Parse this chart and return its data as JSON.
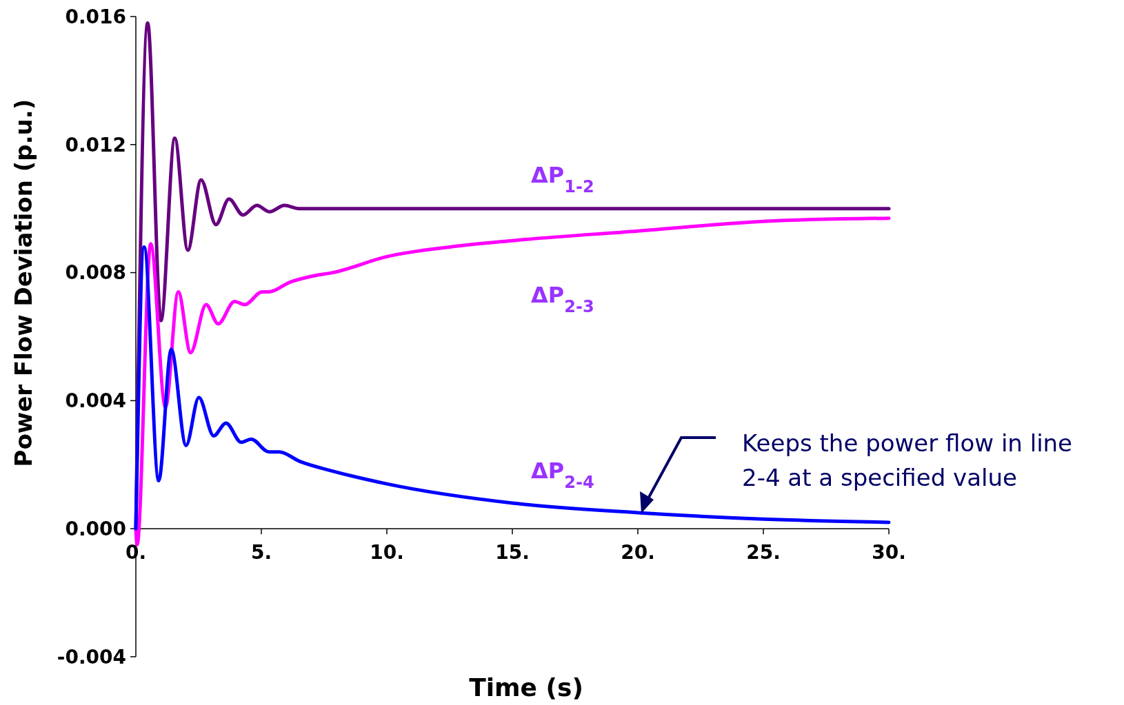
{
  "chart_data": {
    "type": "line",
    "xlabel": "Time (s)",
    "ylabel": "Power Flow Deviation (p.u.)",
    "xlim": [
      0,
      30
    ],
    "ylim": [
      -0.004,
      0.016
    ],
    "xticks": [
      {
        "value": 0,
        "label": "0."
      },
      {
        "value": 5,
        "label": "5."
      },
      {
        "value": 10,
        "label": "10."
      },
      {
        "value": 15,
        "label": "15."
      },
      {
        "value": 20,
        "label": "20."
      },
      {
        "value": 25,
        "label": "25."
      },
      {
        "value": 30,
        "label": "30."
      }
    ],
    "yticks": [
      {
        "value": -0.004,
        "label": "-0.004"
      },
      {
        "value": 0,
        "label": "0.000"
      },
      {
        "value": 0.004,
        "label": "0.004"
      },
      {
        "value": 0.008,
        "label": "0.008"
      },
      {
        "value": 0.012,
        "label": "0.012"
      },
      {
        "value": 0.016,
        "label": "0.016"
      }
    ],
    "grid": false,
    "marker": "none",
    "line_style": "solid",
    "series": [
      {
        "name": "ΔP$_{1-2}$",
        "color": "#660080",
        "x": [
          0,
          0.47,
          1.0,
          1.55,
          2.07,
          2.6,
          3.19,
          3.71,
          4.27,
          4.82,
          5.33,
          5.92,
          6.5,
          8,
          10,
          15,
          20,
          25,
          30
        ],
        "values": [
          0,
          0.0158,
          0.0065,
          0.0122,
          0.0087,
          0.0109,
          0.0095,
          0.0103,
          0.0098,
          0.0101,
          0.0099,
          0.0101,
          0.01,
          0.01,
          0.01,
          0.01,
          0.01,
          0.01,
          0.01
        ]
      },
      {
        "name": "ΔP$_{2-3}$",
        "color": "#ff00ff",
        "x": [
          0,
          0.05,
          0.59,
          1.18,
          1.69,
          2.18,
          2.8,
          3.28,
          3.93,
          4.34,
          5.03,
          5.3,
          6.13,
          7.09,
          7.84,
          10,
          12.5,
          15,
          20,
          25,
          30
        ],
        "values": [
          0,
          -0.0005,
          0.0089,
          0.0038,
          0.0074,
          0.0055,
          0.007,
          0.0064,
          0.0071,
          0.007,
          0.0074,
          0.0074,
          0.0077,
          0.0079,
          0.008,
          0.0085,
          0.0088,
          0.009,
          0.0093,
          0.0096,
          0.0097
        ]
      },
      {
        "name": "ΔP$_{2-4}$",
        "color": "#0000ff",
        "x": [
          0,
          0.33,
          0.91,
          1.41,
          2.0,
          2.51,
          3.1,
          3.59,
          4.2,
          4.59,
          5.3,
          5.71,
          6.54,
          7.84,
          10,
          15,
          20,
          25,
          30
        ],
        "values": [
          0,
          0.0088,
          0.0015,
          0.0056,
          0.0026,
          0.0041,
          0.0029,
          0.0033,
          0.0027,
          0.0028,
          0.0024,
          0.0024,
          0.0021,
          0.0018,
          0.0014,
          0.0008,
          0.0005,
          0.0003,
          0.0002
        ]
      }
    ],
    "annotations": [
      "Keeps the power flow in line\n2-4 at a specified value"
    ]
  }
}
